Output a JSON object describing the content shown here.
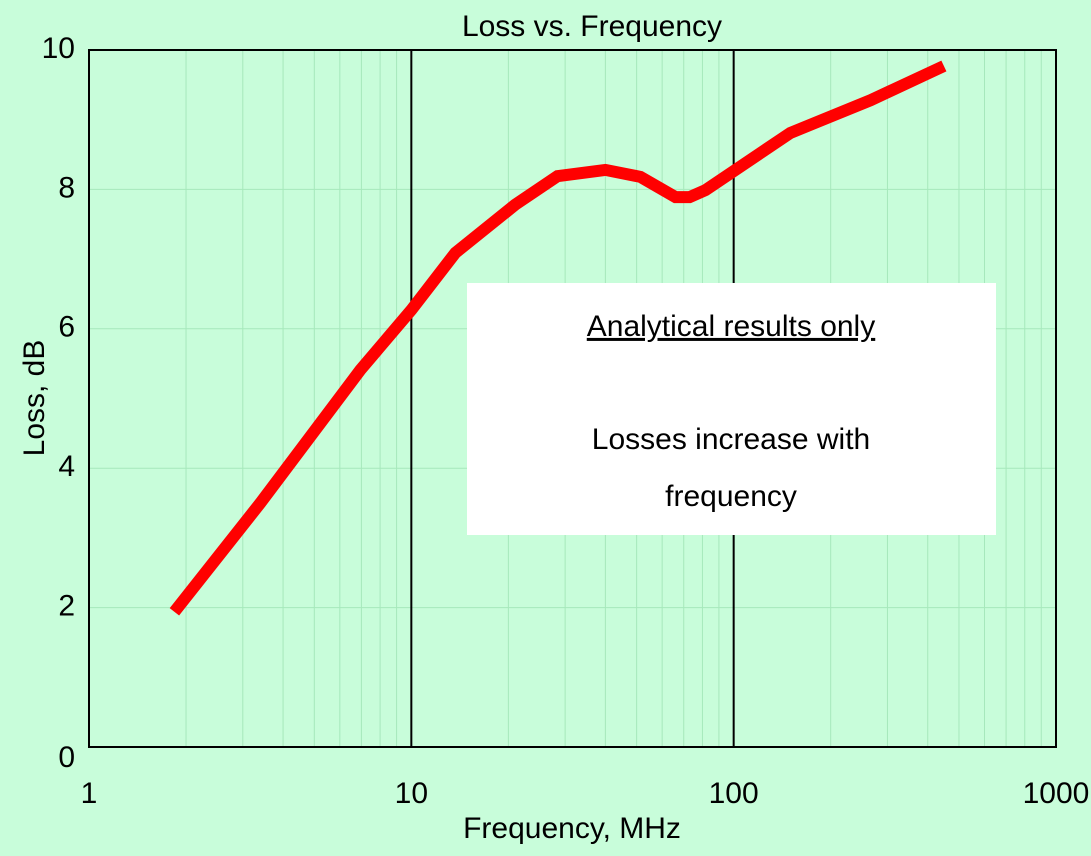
{
  "chart_data": {
    "type": "line",
    "title": "Loss vs. Frequency",
    "xlabel": "Frequency, MHz",
    "ylabel": "Loss, dB",
    "x": [
      1.84,
      3.4,
      6.95,
      10,
      13.7,
      21,
      28.4,
      40,
      51.4,
      66,
      73,
      81.8,
      150,
      266,
      449
    ],
    "values": [
      1.94,
      3.5,
      5.41,
      6.27,
      7.09,
      7.78,
      8.19,
      8.28,
      8.18,
      7.89,
      7.89,
      7.99,
      8.81,
      9.28,
      9.77
    ],
    "color": "#ff0000",
    "xlim": [
      1,
      1000
    ],
    "xticks": [
      1,
      10,
      100,
      1000
    ],
    "xscale": "log",
    "ylim": [
      0,
      10
    ],
    "yticks": [
      0,
      2,
      4,
      6,
      8,
      10
    ],
    "grid": true,
    "minor_grid": true,
    "annotation": {
      "heading": "Analytical results only",
      "lines": [
        "Losses increase with",
        "frequency"
      ]
    }
  }
}
